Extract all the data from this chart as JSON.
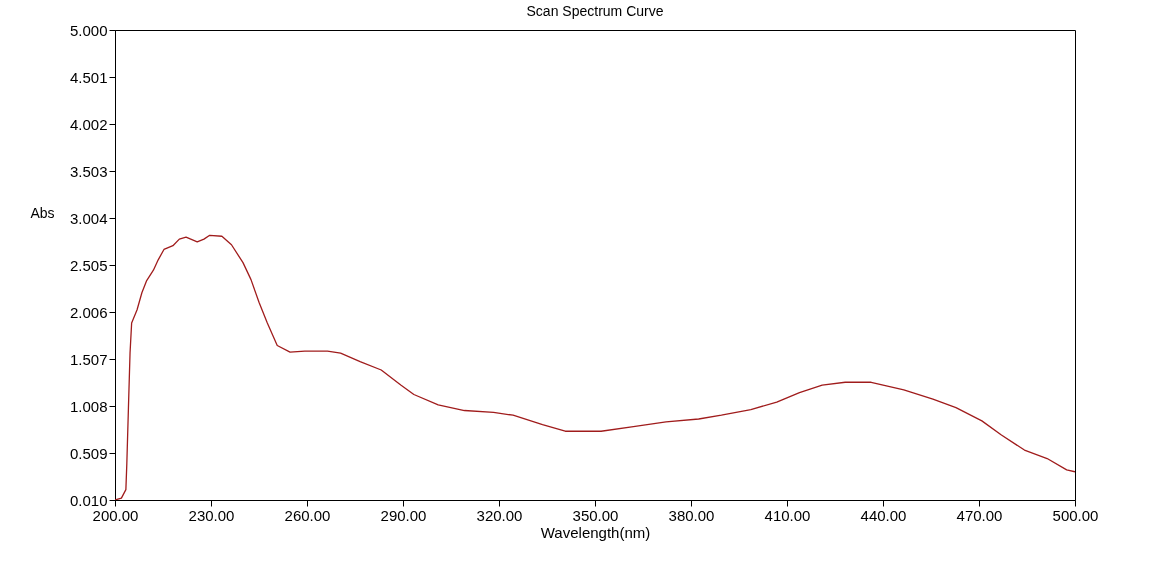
{
  "chart_data": {
    "type": "line",
    "title": "Scan Spectrum Curve",
    "xlabel": "Wavelength(nm)",
    "ylabel": "Abs",
    "x": [
      200,
      202,
      203.4,
      203.7,
      204.2,
      204.7,
      205.2,
      206.9,
      208.4,
      209.9,
      212,
      213.5,
      215.3,
      218.1,
      220.1,
      222.2,
      225.7,
      227.8,
      229.6,
      233.4,
      236.4,
      240,
      242.5,
      245,
      247.6,
      250.7,
      254.7,
      259.3,
      266.4,
      270.5,
      276.6,
      283.2,
      289.3,
      293.4,
      301,
      309.2,
      318.3,
      324.4,
      333.6,
      340.7,
      351.9,
      362,
      372.2,
      382.4,
      389.5,
      398.7,
      406.8,
      413.9,
      421,
      428.2,
      436.3,
      446.5,
      455.6,
      462.8,
      470.9,
      477,
      484.2,
      491.3,
      497.4,
      500
    ],
    "series": [
      {
        "color": "#a01c1c",
        "values": [
          0.01,
          0.03,
          0.12,
          0.4,
          0.99,
          1.57,
          1.89,
          2.03,
          2.21,
          2.34,
          2.45,
          2.56,
          2.67,
          2.71,
          2.78,
          2.8,
          2.75,
          2.78,
          2.82,
          2.81,
          2.72,
          2.53,
          2.35,
          2.11,
          1.89,
          1.65,
          1.58,
          1.59,
          1.59,
          1.57,
          1.48,
          1.39,
          1.23,
          1.13,
          1.02,
          0.96,
          0.94,
          0.91,
          0.81,
          0.74,
          0.74,
          0.79,
          0.84,
          0.87,
          0.91,
          0.97,
          1.05,
          1.15,
          1.23,
          1.26,
          1.26,
          1.18,
          1.08,
          0.99,
          0.85,
          0.7,
          0.54,
          0.45,
          0.33,
          0.31
        ]
      }
    ],
    "xlim": [
      200,
      500
    ],
    "ylim": [
      0.01,
      5.0
    ],
    "xticks": [
      {
        "value": 200,
        "label": "200.00"
      },
      {
        "value": 230,
        "label": "230.00"
      },
      {
        "value": 260,
        "label": "260.00"
      },
      {
        "value": 290,
        "label": "290.00"
      },
      {
        "value": 320,
        "label": "320.00"
      },
      {
        "value": 350,
        "label": "350.00"
      },
      {
        "value": 380,
        "label": "380.00"
      },
      {
        "value": 410,
        "label": "410.00"
      },
      {
        "value": 440,
        "label": "440.00"
      },
      {
        "value": 470,
        "label": "470.00"
      },
      {
        "value": 500,
        "label": "500.00"
      }
    ],
    "yticks": [
      {
        "value": 0.01,
        "label": "0.010"
      },
      {
        "value": 0.509,
        "label": "0.509"
      },
      {
        "value": 1.008,
        "label": "1.008"
      },
      {
        "value": 1.507,
        "label": "1.507"
      },
      {
        "value": 2.006,
        "label": "2.006"
      },
      {
        "value": 2.505,
        "label": "2.505"
      },
      {
        "value": 3.004,
        "label": "3.004"
      },
      {
        "value": 3.503,
        "label": "3.503"
      },
      {
        "value": 4.002,
        "label": "4.002"
      },
      {
        "value": 4.501,
        "label": "4.501"
      },
      {
        "value": 5.0,
        "label": "5.000"
      }
    ],
    "grid": false,
    "line_style": "solid"
  }
}
